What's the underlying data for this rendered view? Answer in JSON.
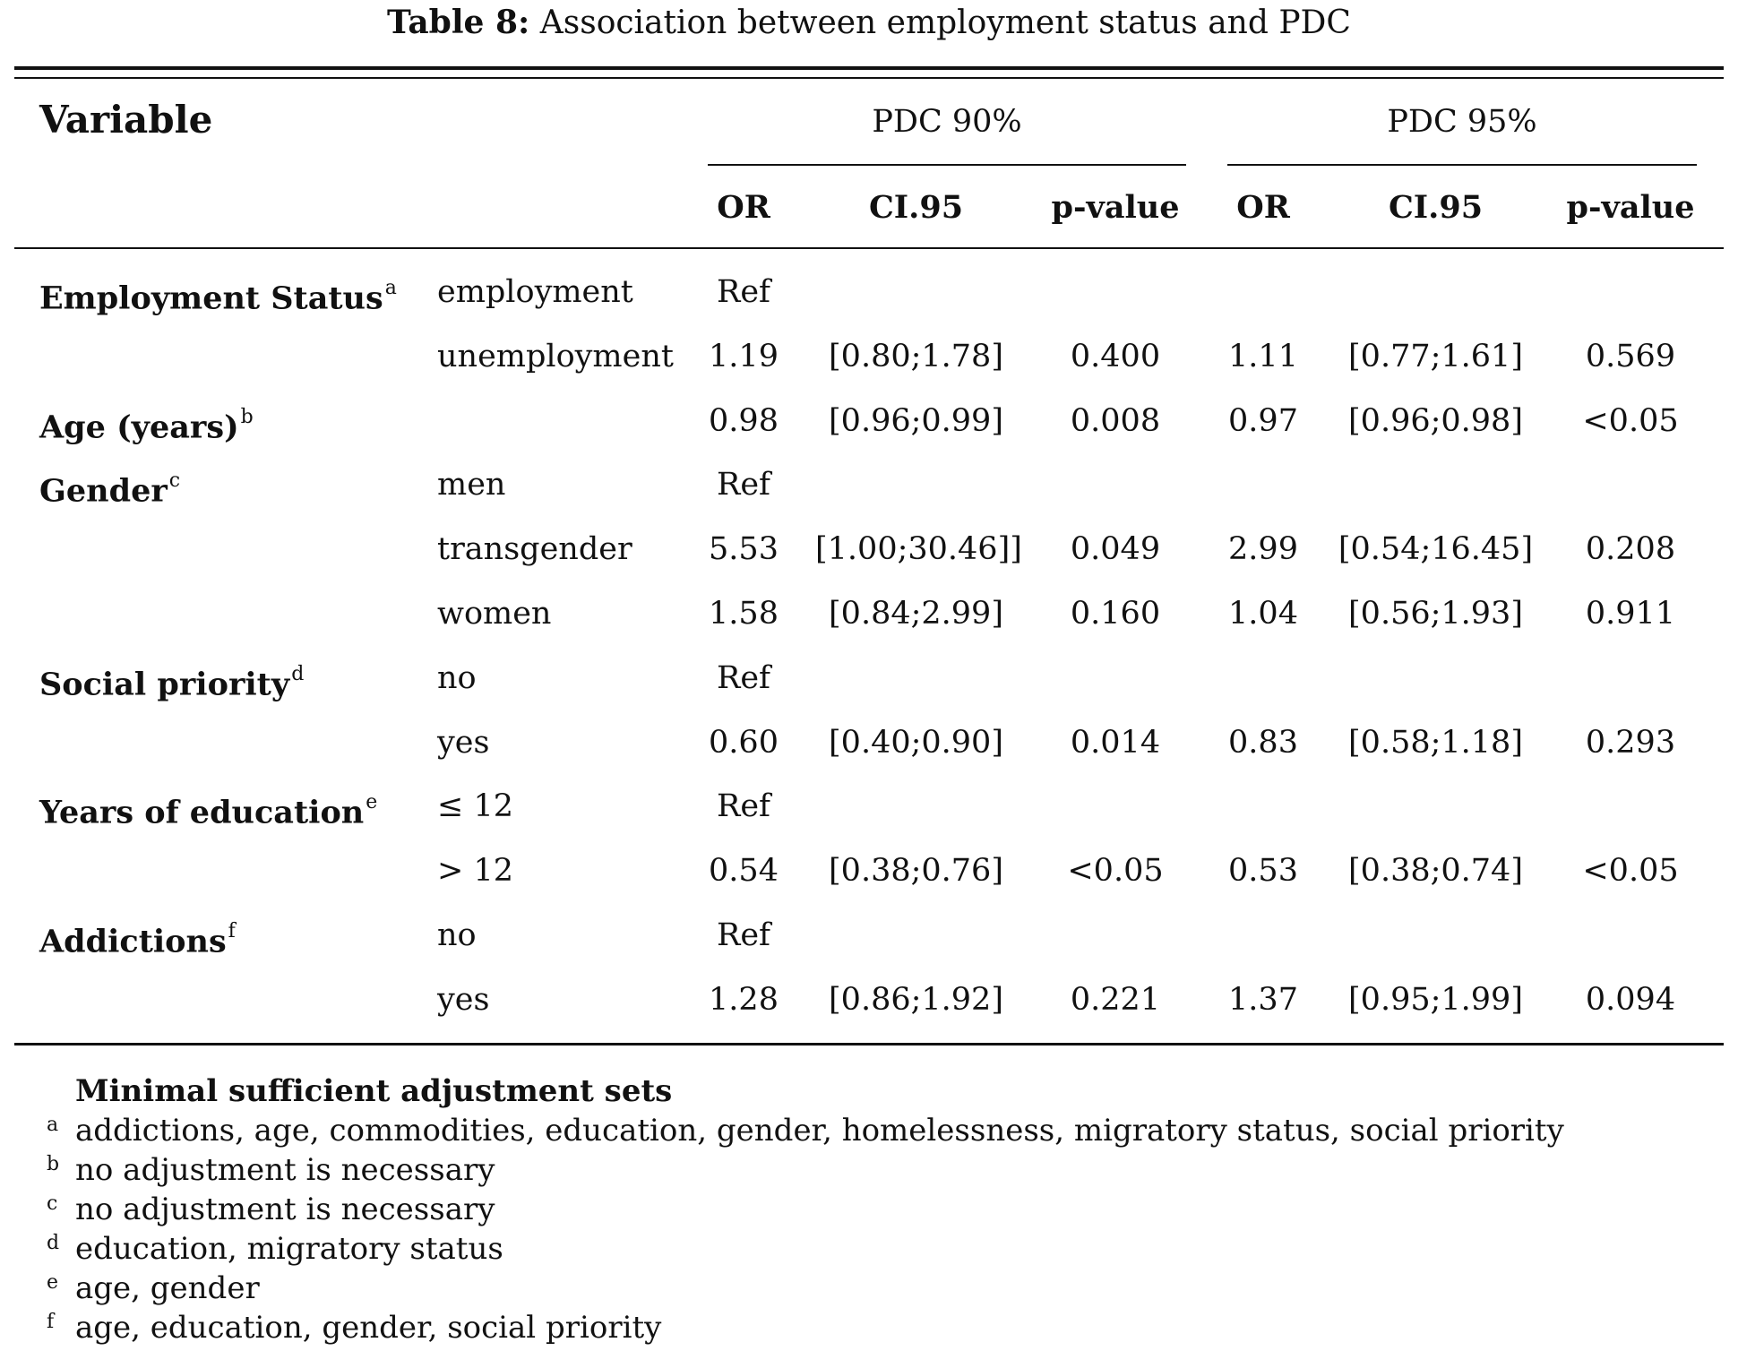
{
  "caption": {
    "label": "Table 8:",
    "text": "Association between employment status and PDC"
  },
  "header": {
    "variable": "Variable",
    "group1": "PDC 90%",
    "group2": "PDC 95%",
    "cols": [
      "OR",
      "CI.95",
      "p-value",
      "OR",
      "CI.95",
      "p-value"
    ]
  },
  "rows": [
    {
      "var": "Employment Status",
      "sup": "a",
      "level": "employment",
      "or1": "Ref",
      "ci1": "",
      "p1": "",
      "or2": "",
      "ci2": "",
      "p2": ""
    },
    {
      "var": "",
      "sup": "",
      "level": "unemployment",
      "or1": "1.19",
      "ci1": "[0.80;1.78]",
      "p1": "0.400",
      "or2": "1.11",
      "ci2": "[0.77;1.61]",
      "p2": "0.569"
    },
    {
      "var": "Age (years)",
      "sup": "b",
      "level": "",
      "or1": "0.98",
      "ci1": "[0.96;0.99]",
      "p1": "0.008",
      "or2": "0.97",
      "ci2": "[0.96;0.98]",
      "p2": "<0.05"
    },
    {
      "var": "Gender",
      "sup": "c",
      "level": "men",
      "or1": "Ref",
      "ci1": "",
      "p1": "",
      "or2": "",
      "ci2": "",
      "p2": ""
    },
    {
      "var": "",
      "sup": "",
      "level": "transgender",
      "or1": "5.53",
      "ci1": "[1.00;30.46]]",
      "p1": "0.049",
      "or2": "2.99",
      "ci2": "[0.54;16.45]",
      "p2": "0.208"
    },
    {
      "var": "",
      "sup": "",
      "level": "women",
      "or1": "1.58",
      "ci1": "[0.84;2.99]",
      "p1": "0.160",
      "or2": "1.04",
      "ci2": "[0.56;1.93]",
      "p2": "0.911"
    },
    {
      "var": "Social priority",
      "sup": "d",
      "level": "no",
      "or1": "Ref",
      "ci1": "",
      "p1": "",
      "or2": "",
      "ci2": "",
      "p2": ""
    },
    {
      "var": "",
      "sup": "",
      "level": "yes",
      "or1": "0.60",
      "ci1": "[0.40;0.90]",
      "p1": "0.014",
      "or2": "0.83",
      "ci2": "[0.58;1.18]",
      "p2": "0.293"
    },
    {
      "var": "Years of education",
      "sup": "e",
      "level": "≤ 12",
      "or1": "Ref",
      "ci1": "",
      "p1": "",
      "or2": "",
      "ci2": "",
      "p2": ""
    },
    {
      "var": "",
      "sup": "",
      "level": "> 12",
      "or1": "0.54",
      "ci1": "[0.38;0.76]",
      "p1": "<0.05",
      "or2": "0.53",
      "ci2": "[0.38;0.74]",
      "p2": "<0.05"
    },
    {
      "var": "Addictions",
      "sup": "f",
      "level": "no",
      "or1": "Ref",
      "ci1": "",
      "p1": "",
      "or2": "",
      "ci2": "",
      "p2": ""
    },
    {
      "var": "",
      "sup": "",
      "level": "yes",
      "or1": "1.28",
      "ci1": "[0.86;1.92]",
      "p1": "0.221",
      "or2": "1.37",
      "ci2": "[0.95;1.99]",
      "p2": "0.094"
    }
  ],
  "notes": {
    "title": "Minimal sufficient adjustment sets",
    "items": [
      {
        "mark": "a",
        "text": "addictions, age, commodities, education, gender, homelessness, migratory status, social priority"
      },
      {
        "mark": "b",
        "text": "no adjustment is necessary"
      },
      {
        "mark": "c",
        "text": "no adjustment is necessary"
      },
      {
        "mark": "d",
        "text": "education, migratory status"
      },
      {
        "mark": "e",
        "text": "age, gender"
      },
      {
        "mark": "f",
        "text": "age, education, gender, social priority"
      }
    ]
  }
}
